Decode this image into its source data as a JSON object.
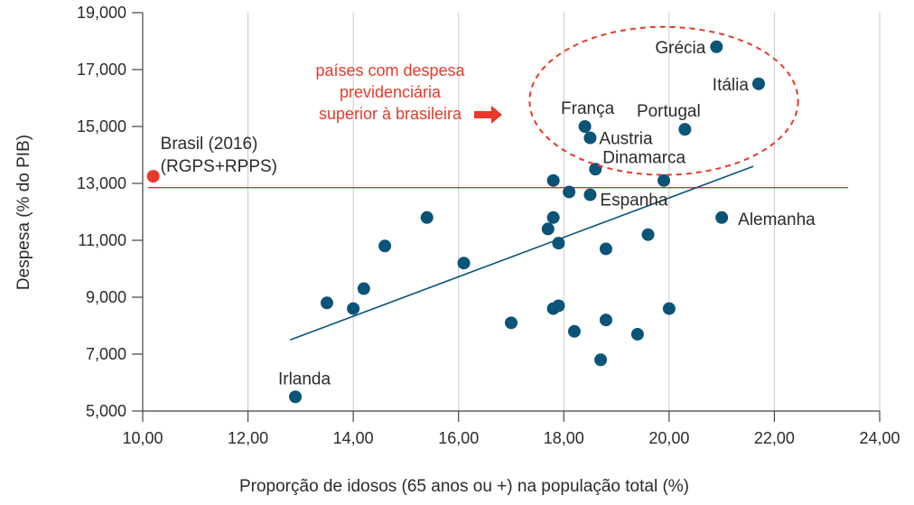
{
  "chart_data": {
    "type": "scatter",
    "xlabel": "Proporção de idosos (65 anos ou +) na população total (%)",
    "ylabel": "Despesa (% do PIB)",
    "xlim": [
      10,
      24
    ],
    "ylim": [
      5,
      19
    ],
    "x_ticks": [
      10,
      12,
      14,
      16,
      18,
      20,
      22,
      24
    ],
    "y_ticks": [
      5,
      7,
      9,
      11,
      13,
      15,
      17,
      19
    ],
    "x_tick_labels": [
      "10,00",
      "12,00",
      "14,00",
      "16,00",
      "18,00",
      "20,00",
      "22,00",
      "24,00"
    ],
    "y_tick_labels": [
      "5,000",
      "7,000",
      "9,000",
      "11,000",
      "13,000",
      "15,000",
      "17,000",
      "19,000"
    ],
    "grid": "vertical",
    "colors": {
      "points": "#0a5478",
      "trend": "#0a5478",
      "brazil": "#e8392b",
      "reference": "#d9343c",
      "annotation": "#e8392b",
      "grid": "#c8c8c8",
      "axis": "#444444"
    },
    "points": [
      {
        "x": 20.9,
        "y": 17.8,
        "label": "Grécia"
      },
      {
        "x": 21.7,
        "y": 16.5,
        "label": "Itália"
      },
      {
        "x": 18.4,
        "y": 15.0,
        "label": "França"
      },
      {
        "x": 20.3,
        "y": 14.9,
        "label": "Portugal"
      },
      {
        "x": 18.5,
        "y": 14.6,
        "label": "Austria"
      },
      {
        "x": 18.6,
        "y": 13.5,
        "label": "Dinamarca"
      },
      {
        "x": 17.8,
        "y": 13.1
      },
      {
        "x": 19.9,
        "y": 13.1
      },
      {
        "x": 18.1,
        "y": 12.7
      },
      {
        "x": 18.5,
        "y": 12.6,
        "label": "Espanha"
      },
      {
        "x": 21.0,
        "y": 11.8,
        "label": "Alemanha"
      },
      {
        "x": 15.4,
        "y": 11.8
      },
      {
        "x": 17.8,
        "y": 11.8
      },
      {
        "x": 17.7,
        "y": 11.4
      },
      {
        "x": 19.6,
        "y": 11.2
      },
      {
        "x": 17.9,
        "y": 10.9
      },
      {
        "x": 14.6,
        "y": 10.8
      },
      {
        "x": 18.8,
        "y": 10.7
      },
      {
        "x": 16.1,
        "y": 10.2
      },
      {
        "x": 14.2,
        "y": 9.3
      },
      {
        "x": 13.5,
        "y": 8.8
      },
      {
        "x": 14.0,
        "y": 8.6
      },
      {
        "x": 17.8,
        "y": 8.6
      },
      {
        "x": 17.9,
        "y": 8.7
      },
      {
        "x": 20.0,
        "y": 8.6
      },
      {
        "x": 18.8,
        "y": 8.2
      },
      {
        "x": 17.0,
        "y": 8.1
      },
      {
        "x": 18.2,
        "y": 7.8
      },
      {
        "x": 19.4,
        "y": 7.7
      },
      {
        "x": 18.7,
        "y": 6.8
      },
      {
        "x": 12.9,
        "y": 5.5,
        "label": "Irlanda"
      }
    ],
    "highlight": {
      "x": 10.2,
      "y": 13.25,
      "label_lines": [
        "Brasil (2016)",
        "(RGPS+RPPS)"
      ]
    },
    "reference_line": {
      "y": 12.85,
      "x_range": [
        10.1,
        23.4
      ]
    },
    "trend_line": {
      "x1": 12.8,
      "y1": 7.5,
      "x2": 21.6,
      "y2": 13.6
    },
    "annotation": {
      "lines": [
        "países com despesa",
        "previdenciária",
        "superior à brasileira"
      ],
      "ellipse": {
        "cx": 19.9,
        "cy": 15.9,
        "rx": 2.55,
        "ry": 2.6
      }
    }
  }
}
